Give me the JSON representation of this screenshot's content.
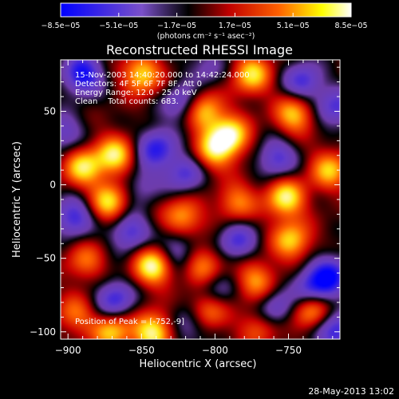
{
  "chart_data": {
    "type": "heatmap",
    "title": "Reconstructed RHESSI Image",
    "xlabel": "Heliocentric X (arcsec)",
    "ylabel": "Heliocentric Y (arcsec)",
    "xlim": [
      -905,
      -715
    ],
    "ylim": [
      -105,
      85
    ],
    "x_ticks": [
      {
        "value": -900,
        "label": "−900"
      },
      {
        "value": -850,
        "label": "−850"
      },
      {
        "value": -800,
        "label": "−800"
      },
      {
        "value": -750,
        "label": "−750"
      }
    ],
    "y_ticks": [
      {
        "value": 50,
        "label": "50"
      },
      {
        "value": 0,
        "label": "0"
      },
      {
        "value": -50,
        "label": "−50"
      },
      {
        "value": -100,
        "label": "−100"
      }
    ],
    "annotations": [
      "15-Nov-2003 14:40:20.000 to 14:42:24.000",
      "Detectors: 4F 5F 6F 7F 8F, Att 0",
      "Energy Range: 12.0 - 25.0 keV",
      "Clean    Total counts: 683."
    ],
    "peak_label": "Position of Peak = [-752,-9]",
    "peak_position": [
      -752,
      -9
    ],
    "colorbar": {
      "labels": [
        "−8.5e−05",
        "−5.1e−05",
        "−1.7e−05",
        "1.7e−05",
        "5.1e−05",
        "8.5e−05"
      ],
      "values": [
        -8.5e-05,
        -5.1e-05,
        -1.7e-05,
        1.7e-05,
        5.1e-05,
        8.5e-05
      ],
      "range": [
        -8.5e-05,
        8.5e-05
      ],
      "units": "(photons cm⁻² s⁻¹ asec⁻²)",
      "colors": [
        "#0000ff",
        "#8050c8",
        "#000000",
        "#c00000",
        "#ff6000",
        "#ffff00",
        "#ffffff"
      ]
    },
    "blobs": [
      {
        "x": -850,
        "y": 75,
        "v": 0.9
      },
      {
        "x": -868,
        "y": 20,
        "v": 0.95
      },
      {
        "x": -890,
        "y": 12,
        "v": 0.9
      },
      {
        "x": -872,
        "y": -12,
        "v": 0.9
      },
      {
        "x": -808,
        "y": 50,
        "v": 0.9
      },
      {
        "x": -802,
        "y": 22,
        "v": 0.75
      },
      {
        "x": -790,
        "y": 33,
        "v": 1.1
      },
      {
        "x": -775,
        "y": 75,
        "v": 0.9
      },
      {
        "x": -746,
        "y": 48,
        "v": 0.85
      },
      {
        "x": -722,
        "y": 10,
        "v": 0.8
      },
      {
        "x": -752,
        "y": -9,
        "v": 1.0
      },
      {
        "x": -785,
        "y": -12,
        "v": 0.65
      },
      {
        "x": -822,
        "y": -22,
        "v": 0.75
      },
      {
        "x": -842,
        "y": -55,
        "v": 1.1
      },
      {
        "x": -808,
        "y": -55,
        "v": 0.7
      },
      {
        "x": -748,
        "y": -38,
        "v": 0.85
      },
      {
        "x": -772,
        "y": -65,
        "v": 0.7
      },
      {
        "x": -888,
        "y": -52,
        "v": 0.55
      },
      {
        "x": -895,
        "y": -88,
        "v": 0.55
      },
      {
        "x": -870,
        "y": -100,
        "v": 0.85
      },
      {
        "x": -842,
        "y": -100,
        "v": 1.05
      },
      {
        "x": -805,
        "y": -85,
        "v": 0.75
      },
      {
        "x": -770,
        "y": -97,
        "v": 0.55
      },
      {
        "x": -735,
        "y": -85,
        "v": 0.85
      },
      {
        "x": -890,
        "y": 75,
        "v": -1.0
      },
      {
        "x": -903,
        "y": 35,
        "v": -0.55
      },
      {
        "x": -822,
        "y": 55,
        "v": -0.65
      },
      {
        "x": -840,
        "y": 25,
        "v": -0.85
      },
      {
        "x": -820,
        "y": 8,
        "v": -0.7
      },
      {
        "x": -858,
        "y": -32,
        "v": -0.75
      },
      {
        "x": -896,
        "y": -22,
        "v": -0.8
      },
      {
        "x": -826,
        "y": -45,
        "v": -0.6
      },
      {
        "x": -868,
        "y": -78,
        "v": -0.8
      },
      {
        "x": -758,
        "y": 18,
        "v": -0.7
      },
      {
        "x": -740,
        "y": 70,
        "v": -0.75
      },
      {
        "x": -718,
        "y": 52,
        "v": -0.7
      },
      {
        "x": -785,
        "y": -38,
        "v": -0.7
      },
      {
        "x": -736,
        "y": -72,
        "v": -0.75
      },
      {
        "x": -722,
        "y": -62,
        "v": -1.0
      },
      {
        "x": -718,
        "y": -100,
        "v": -0.85
      },
      {
        "x": -760,
        "y": -85,
        "v": -0.6
      },
      {
        "x": -800,
        "y": -72,
        "v": -0.5
      },
      {
        "x": -818,
        "y": -95,
        "v": -0.5
      },
      {
        "x": -850,
        "y": 0,
        "v": -0.4
      },
      {
        "x": -805,
        "y": 80,
        "v": -0.4
      }
    ]
  },
  "footer": {
    "timestamp": "28-May-2013 13:02"
  }
}
